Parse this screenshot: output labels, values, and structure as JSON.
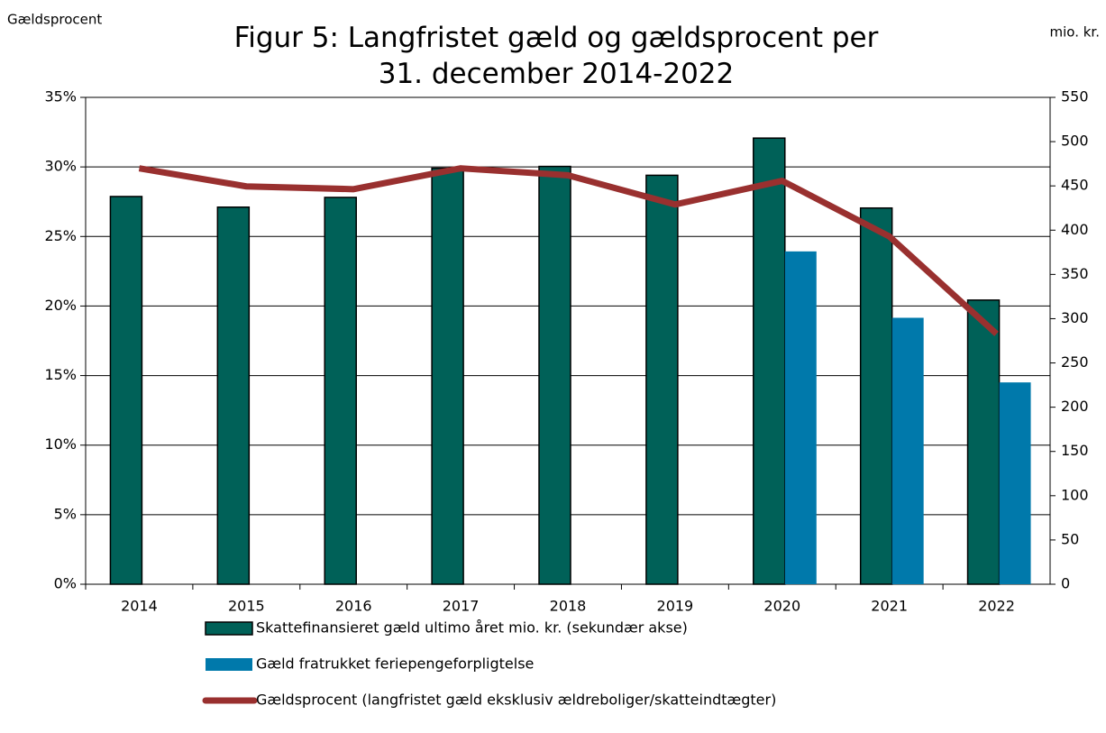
{
  "chart_data": {
    "type": "bar",
    "title": "Figur 5: Langfristet gæld og gældsprocent per\n31. december 2014-2022",
    "y_label": "Gældsprocent",
    "y2_label": "mio. kr.",
    "categories": [
      "2014",
      "2015",
      "2016",
      "2017",
      "2018",
      "2019",
      "2020",
      "2021",
      "2022"
    ],
    "series": [
      {
        "name": "Skattefinansieret gæld ultimo året mio. kr. (sekundær akse)",
        "type": "bar",
        "axis": "y2",
        "color": "#006158",
        "values": [
          438,
          426,
          437,
          470,
          472,
          462,
          504,
          425,
          321
        ]
      },
      {
        "name": "Gæld fratrukket feriepengeforpligtelse",
        "type": "bar",
        "axis": "y2",
        "color": "#0079ab",
        "values": [
          null,
          null,
          null,
          null,
          null,
          null,
          376,
          301,
          228
        ]
      },
      {
        "name": "Gældsprocent (langfristet gæld eksklusiv ældreboliger/skatteindtægter)",
        "type": "line",
        "axis": "y",
        "color": "#99302f",
        "values": [
          29.9,
          28.6,
          28.4,
          29.9,
          29.4,
          27.3,
          29.0,
          25.0,
          18.0
        ]
      }
    ],
    "ylim": [
      0,
      35
    ],
    "yticks": [
      {
        "value": 0,
        "label": "0%"
      },
      {
        "value": 5,
        "label": "5%"
      },
      {
        "value": 10,
        "label": "10%"
      },
      {
        "value": 15,
        "label": "15%"
      },
      {
        "value": 20,
        "label": "20%"
      },
      {
        "value": 25,
        "label": "25%"
      },
      {
        "value": 30,
        "label": "30%"
      },
      {
        "value": 35,
        "label": "35%"
      }
    ],
    "y2lim": [
      0,
      550
    ],
    "y2ticks": [
      0,
      50,
      100,
      150,
      200,
      250,
      300,
      350,
      400,
      450,
      500,
      550
    ],
    "grid": true
  }
}
